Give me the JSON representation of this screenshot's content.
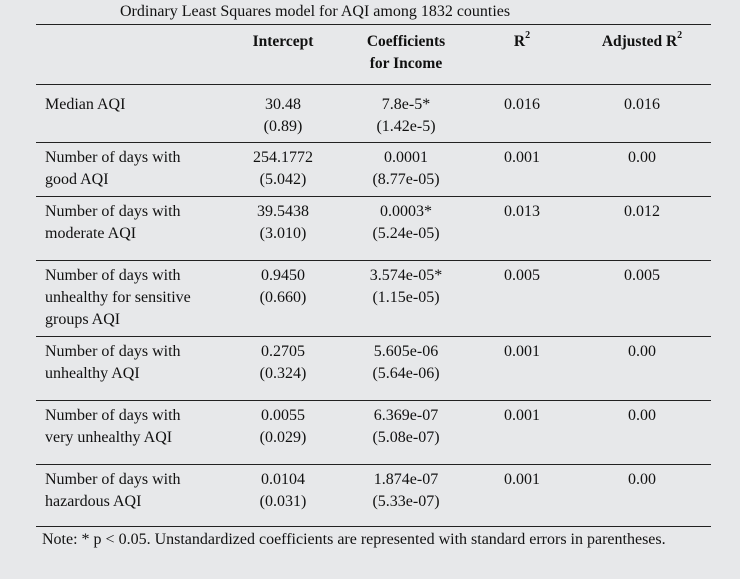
{
  "title": "Ordinary Least Squares model for AQI among 1832 counties",
  "headers": {
    "intercept": "Intercept",
    "coef_line1": "Coefficients",
    "coef_line2": "for Income",
    "r2": "R",
    "r2_sup": "2",
    "adj_r2": "Adjusted R",
    "adj_r2_sup": "2"
  },
  "rows": [
    {
      "label": [
        "Median AQI"
      ],
      "intercept": [
        "30.48",
        "(0.89)"
      ],
      "coef": [
        "7.8e-5*",
        "(1.42e-5)"
      ],
      "r2": "0.016",
      "adj": "0.016"
    },
    {
      "label": [
        "Number of days with",
        "good AQI"
      ],
      "intercept": [
        "254.1772",
        "(5.042)"
      ],
      "coef": [
        "0.0001",
        "(8.77e-05)"
      ],
      "r2": "0.001",
      "adj": "0.00"
    },
    {
      "label": [
        "Number of days with",
        "moderate AQI"
      ],
      "intercept": [
        "39.5438",
        "(3.010)"
      ],
      "coef": [
        "0.0003*",
        "(5.24e-05)"
      ],
      "r2": "0.013",
      "adj": "0.012"
    },
    {
      "label": [
        "Number of days with",
        "unhealthy for sensitive",
        "groups AQI"
      ],
      "intercept": [
        "0.9450",
        "(0.660)"
      ],
      "coef": [
        "3.574e-05*",
        "(1.15e-05)"
      ],
      "r2": "0.005",
      "adj": "0.005"
    },
    {
      "label": [
        "Number of days with",
        "unhealthy AQI"
      ],
      "intercept": [
        "0.2705",
        "(0.324)"
      ],
      "coef": [
        "5.605e-06",
        "(5.64e-06)"
      ],
      "r2": "0.001",
      "adj": "0.00"
    },
    {
      "label": [
        "Number of days with",
        "very unhealthy AQI"
      ],
      "intercept": [
        "0.0055",
        "(0.029)"
      ],
      "coef": [
        "6.369e-07",
        "(5.08e-07)"
      ],
      "r2": "0.001",
      "adj": "0.00"
    },
    {
      "label": [
        "Number of  days with",
        "hazardous AQI"
      ],
      "intercept": [
        "0.0104",
        "(0.031)"
      ],
      "coef": [
        "1.874e-07",
        "(5.33e-07)"
      ],
      "r2": "0.001",
      "adj": "0.00"
    }
  ],
  "note": "Note: * p < 0.05. Unstandardized coefficients are represented with standard errors in parentheses."
}
